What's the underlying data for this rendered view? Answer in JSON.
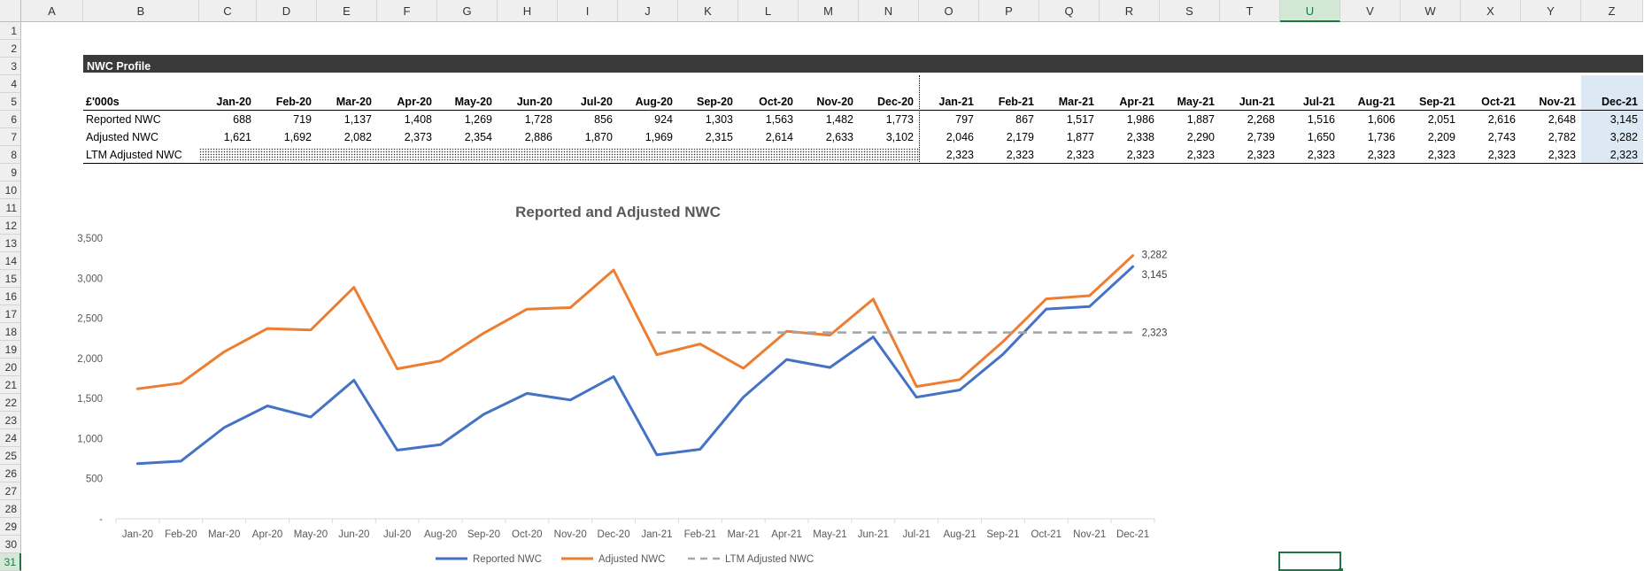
{
  "columns": [
    "A",
    "B",
    "C",
    "D",
    "E",
    "F",
    "G",
    "H",
    "I",
    "J",
    "K",
    "L",
    "M",
    "N",
    "O",
    "P",
    "Q",
    "R",
    "S",
    "T",
    "U",
    "V",
    "W",
    "X",
    "Y",
    "Z"
  ],
  "rows": [
    "1",
    "2",
    "3",
    "4",
    "5",
    "6",
    "7",
    "8",
    "9",
    "10",
    "11",
    "12",
    "13",
    "14",
    "15",
    "16",
    "17",
    "18",
    "19",
    "20",
    "21",
    "22",
    "23",
    "24",
    "25",
    "26",
    "27",
    "28",
    "29",
    "30",
    "31"
  ],
  "selected_column": "U",
  "selected_row": "31",
  "table": {
    "title": "NWC Profile",
    "unit_label": "£'000s",
    "months": [
      "Jan-20",
      "Feb-20",
      "Mar-20",
      "Apr-20",
      "May-20",
      "Jun-20",
      "Jul-20",
      "Aug-20",
      "Sep-20",
      "Oct-20",
      "Nov-20",
      "Dec-20",
      "Jan-21",
      "Feb-21",
      "Mar-21",
      "Apr-21",
      "May-21",
      "Jun-21",
      "Jul-21",
      "Aug-21",
      "Sep-21",
      "Oct-21",
      "Nov-21",
      "Dec-21"
    ],
    "rows": [
      {
        "label": "Reported NWC",
        "values": [
          "688",
          "719",
          "1,137",
          "1,408",
          "1,269",
          "1,728",
          "856",
          "924",
          "1,303",
          "1,563",
          "1,482",
          "1,773",
          "797",
          "867",
          "1,517",
          "1,986",
          "1,887",
          "2,268",
          "1,516",
          "1,606",
          "2,051",
          "2,616",
          "2,648",
          "3,145"
        ]
      },
      {
        "label": "Adjusted NWC",
        "values": [
          "1,621",
          "1,692",
          "2,082",
          "2,373",
          "2,354",
          "2,886",
          "1,870",
          "1,969",
          "2,315",
          "2,614",
          "2,633",
          "3,102",
          "2,046",
          "2,179",
          "1,877",
          "2,338",
          "2,290",
          "2,739",
          "1,650",
          "1,736",
          "2,209",
          "2,743",
          "2,782",
          "3,282"
        ]
      },
      {
        "label": "LTM Adjusted NWC",
        "values": [
          "",
          "",
          "",
          "",
          "",
          "",
          "",
          "",
          "",
          "",
          "",
          "",
          "2,323",
          "2,323",
          "2,323",
          "2,323",
          "2,323",
          "2,323",
          "2,323",
          "2,323",
          "2,323",
          "2,323",
          "2,323",
          "2,323"
        ]
      }
    ]
  },
  "chart_data": {
    "type": "line",
    "title": "Reported and Adjusted NWC",
    "categories": [
      "Jan-20",
      "Feb-20",
      "Mar-20",
      "Apr-20",
      "May-20",
      "Jun-20",
      "Jul-20",
      "Aug-20",
      "Sep-20",
      "Oct-20",
      "Nov-20",
      "Dec-20",
      "Jan-21",
      "Feb-21",
      "Mar-21",
      "Apr-21",
      "May-21",
      "Jun-21",
      "Jul-21",
      "Aug-21",
      "Sep-21",
      "Oct-21",
      "Nov-21",
      "Dec-21"
    ],
    "y_ticks": [
      "-",
      "500",
      "1,000",
      "1,500",
      "2,000",
      "2,500",
      "3,000",
      "3,500"
    ],
    "ylim": [
      0,
      3500
    ],
    "legend_position": "bottom",
    "grid": false,
    "series": [
      {
        "name": "Reported NWC",
        "color": "#4472c4",
        "dash": false,
        "values": [
          688,
          719,
          1137,
          1408,
          1269,
          1728,
          856,
          924,
          1303,
          1563,
          1482,
          1773,
          797,
          867,
          1517,
          1986,
          1887,
          2268,
          1516,
          1606,
          2051,
          2616,
          2648,
          3145
        ],
        "end_label": "3,145"
      },
      {
        "name": "Adjusted NWC",
        "color": "#ed7d31",
        "dash": false,
        "values": [
          1621,
          1692,
          2082,
          2373,
          2354,
          2886,
          1870,
          1969,
          2315,
          2614,
          2633,
          3102,
          2046,
          2179,
          1877,
          2338,
          2290,
          2739,
          1650,
          1736,
          2209,
          2743,
          2782,
          3282
        ],
        "end_label": "3,282"
      },
      {
        "name": "LTM Adjusted NWC",
        "color": "#a5a5a5",
        "dash": true,
        "values": [
          null,
          null,
          null,
          null,
          null,
          null,
          null,
          null,
          null,
          null,
          null,
          null,
          2323,
          2323,
          2323,
          2323,
          2323,
          2323,
          2323,
          2323,
          2323,
          2323,
          2323,
          2323
        ],
        "end_label": "2,323"
      }
    ]
  }
}
